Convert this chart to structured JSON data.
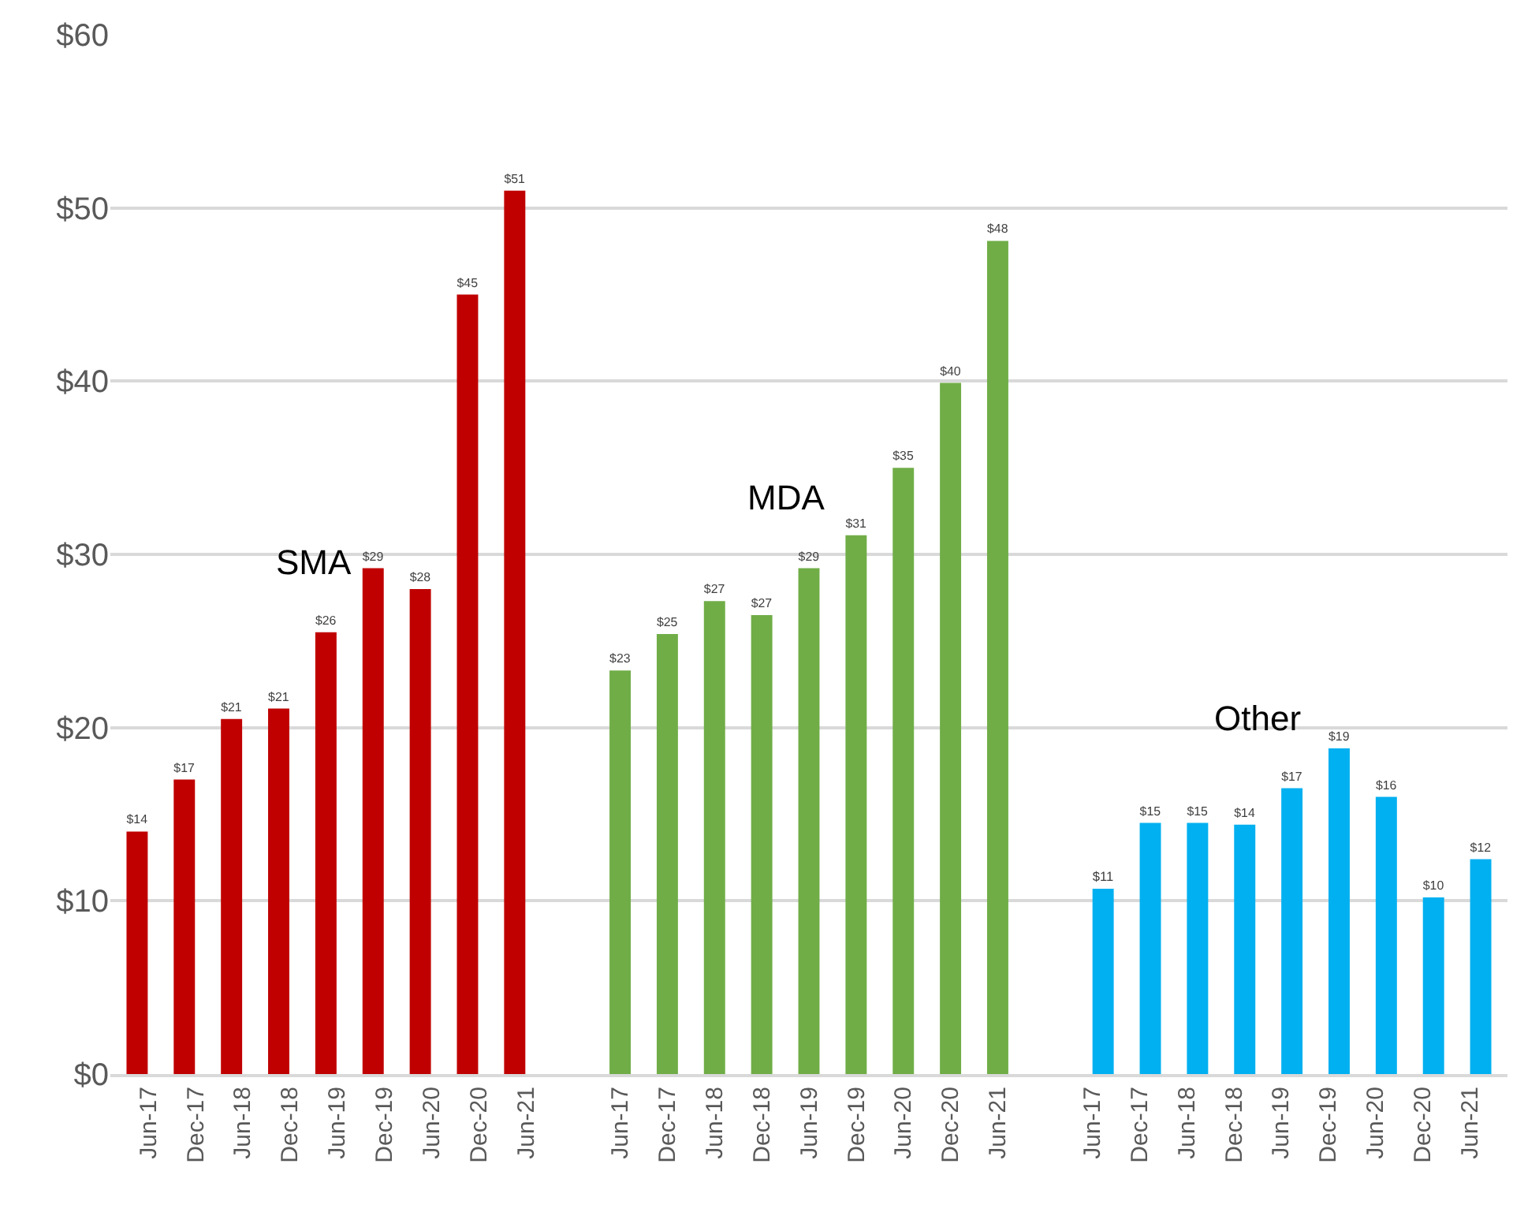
{
  "chart_data": {
    "type": "bar",
    "categories": [
      "Jun-17",
      "Dec-17",
      "Jun-18",
      "Dec-18",
      "Jun-19",
      "Dec-19",
      "Jun-20",
      "Dec-20",
      "Jun-21",
      null,
      "Jun-17",
      "Dec-17",
      "Jun-18",
      "Dec-18",
      "Jun-19",
      "Dec-19",
      "Jun-20",
      "Dec-20",
      "Jun-21",
      null,
      "Jun-17",
      "Dec-17",
      "Jun-18",
      "Dec-18",
      "Jun-19",
      "Dec-19",
      "Jun-20",
      "Dec-20",
      "Jun-21"
    ],
    "series": [
      {
        "name": "SMA",
        "color": "#c00000",
        "values": [
          14.0,
          17.0,
          20.5,
          21.1,
          25.5,
          29.2,
          28.0,
          45.0,
          51.0,
          null,
          null,
          null,
          null,
          null,
          null,
          null,
          null,
          null,
          null,
          null,
          null,
          null,
          null,
          null,
          null,
          null,
          null,
          null,
          null
        ],
        "value_labels": [
          "$14",
          "$17",
          "$21",
          "$21",
          "$26",
          "$29",
          "$28",
          "$45",
          "$51",
          null,
          null,
          null,
          null,
          null,
          null,
          null,
          null,
          null,
          null,
          null,
          null,
          null,
          null,
          null,
          null,
          null,
          null,
          null,
          null
        ]
      },
      {
        "name": "MDA",
        "color": "#70ad47",
        "values": [
          null,
          null,
          null,
          null,
          null,
          null,
          null,
          null,
          null,
          null,
          23.3,
          25.4,
          27.3,
          26.5,
          29.2,
          31.1,
          35.0,
          39.9,
          48.1,
          null,
          null,
          null,
          null,
          null,
          null,
          null,
          null,
          null,
          null
        ],
        "value_labels": [
          null,
          null,
          null,
          null,
          null,
          null,
          null,
          null,
          null,
          null,
          "$23",
          "$25",
          "$27",
          "$27",
          "$29",
          "$31",
          "$35",
          "$40",
          "$48",
          null,
          null,
          null,
          null,
          null,
          null,
          null,
          null,
          null,
          null
        ]
      },
      {
        "name": "Other",
        "color": "#00b0f0",
        "values": [
          null,
          null,
          null,
          null,
          null,
          null,
          null,
          null,
          null,
          null,
          null,
          null,
          null,
          null,
          null,
          null,
          null,
          null,
          null,
          null,
          10.7,
          14.5,
          14.5,
          14.4,
          16.5,
          18.8,
          16.0,
          10.2,
          12.4
        ],
        "value_labels": [
          null,
          null,
          null,
          null,
          null,
          null,
          null,
          null,
          null,
          null,
          null,
          null,
          null,
          null,
          null,
          null,
          null,
          null,
          null,
          null,
          "$11",
          "$15",
          "$15",
          "$14",
          "$17",
          "$19",
          "$16",
          "$10",
          "$12"
        ]
      }
    ],
    "ylim": [
      0,
      60
    ],
    "yticks": [
      {
        "value": 0,
        "label": "$0"
      },
      {
        "value": 10,
        "label": "$10"
      },
      {
        "value": 20,
        "label": "$20"
      },
      {
        "value": 30,
        "label": "$30"
      },
      {
        "value": 40,
        "label": "$40"
      },
      {
        "value": 50,
        "label": "$50"
      },
      {
        "value": 60,
        "label": "$60"
      }
    ],
    "grid": "y",
    "legend": false
  }
}
